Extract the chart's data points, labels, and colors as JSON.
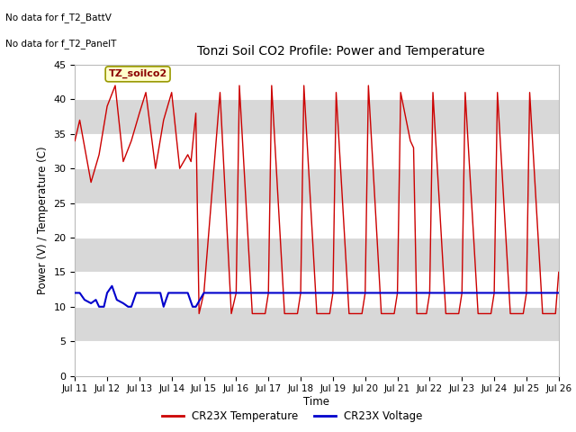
{
  "title": "Tonzi Soil CO2 Profile: Power and Temperature",
  "ylabel": "Power (V) / Temperature (C)",
  "xlabel": "Time",
  "top_left_text_line1": "No data for f_T2_BattV",
  "top_left_text_line2": "No data for f_T2_PanelT",
  "legend_box_text": "TZ_soilco2",
  "ylim": [
    0,
    45
  ],
  "yticks": [
    0,
    5,
    10,
    15,
    20,
    25,
    30,
    35,
    40,
    45
  ],
  "xtick_labels": [
    "Jul 11",
    "Jul 12",
    "Jul 13",
    "Jul 14",
    "Jul 15",
    "Jul 16",
    "Jul 17",
    "Jul 18",
    "Jul 19",
    "Jul 20",
    "Jul 21",
    "Jul 22",
    "Jul 23",
    "Jul 24",
    "Jul 25",
    "Jul 26"
  ],
  "background_color": "#ffffff",
  "plot_bg_color": "#e8e8e8",
  "grid_color": "#ffffff",
  "band_color_dark": "#d8d8d8",
  "band_color_light": "#e8e8e8",
  "legend_items": [
    {
      "label": "CR23X Temperature",
      "color": "#ff0000"
    },
    {
      "label": "CR23X Voltage",
      "color": "#0000ff"
    }
  ],
  "red_x": [
    0.0,
    0.15,
    0.5,
    0.75,
    1.0,
    1.25,
    1.5,
    1.75,
    2.0,
    2.2,
    2.5,
    2.75,
    3.0,
    3.25,
    3.5,
    3.6,
    3.75,
    3.85,
    4.0,
    4.5,
    4.85,
    5.0,
    5.1,
    5.5,
    5.9,
    6.0,
    6.1,
    6.5,
    6.9,
    7.0,
    7.1,
    7.5,
    7.9,
    8.0,
    8.1,
    8.5,
    8.9,
    9.0,
    9.1,
    9.5,
    9.9,
    10.0,
    10.1,
    10.4,
    10.5,
    10.6,
    10.9,
    11.0,
    11.1,
    11.5,
    11.9,
    12.0,
    12.1,
    12.5,
    12.9,
    13.0,
    13.1,
    13.5,
    13.9,
    14.0,
    14.1,
    14.5,
    14.9,
    15.0
  ],
  "red_y": [
    34,
    37,
    28,
    32,
    39,
    42,
    31,
    34,
    38,
    41,
    30,
    37,
    41,
    30,
    32,
    31,
    38,
    9,
    12,
    41,
    9,
    12,
    42,
    9,
    9,
    12,
    42,
    9,
    9,
    12,
    42,
    9,
    9,
    12,
    41,
    9,
    9,
    12,
    42,
    9,
    9,
    12,
    41,
    34,
    33,
    9,
    9,
    12,
    41,
    9,
    9,
    12,
    41,
    9,
    9,
    12,
    41,
    9,
    9,
    12,
    41,
    9,
    9,
    15
  ],
  "blue_x": [
    0.0,
    0.15,
    0.3,
    0.5,
    0.65,
    0.75,
    0.9,
    1.0,
    1.15,
    1.3,
    1.5,
    1.65,
    1.75,
    1.9,
    2.0,
    2.15,
    2.3,
    2.5,
    2.65,
    2.75,
    2.9,
    3.0,
    3.15,
    3.3,
    3.5,
    3.65,
    3.75,
    4.0,
    4.5,
    5.0,
    5.5,
    6.0,
    6.5,
    7.0,
    7.5,
    8.0,
    8.5,
    9.0,
    9.5,
    10.0,
    10.5,
    11.0,
    11.5,
    12.0,
    12.5,
    13.0,
    13.5,
    14.0,
    14.5,
    15.0
  ],
  "blue_y": [
    12,
    12,
    11,
    10.5,
    11,
    10,
    10,
    12,
    13,
    11,
    10.5,
    10,
    10,
    12,
    12,
    12,
    12,
    12,
    12,
    10,
    12,
    12,
    12,
    12,
    12,
    10,
    10,
    12,
    12,
    12,
    12,
    12,
    12,
    12,
    12,
    12,
    12,
    12,
    12,
    12,
    12,
    12,
    12,
    12,
    12,
    12,
    12,
    12,
    12,
    12
  ]
}
